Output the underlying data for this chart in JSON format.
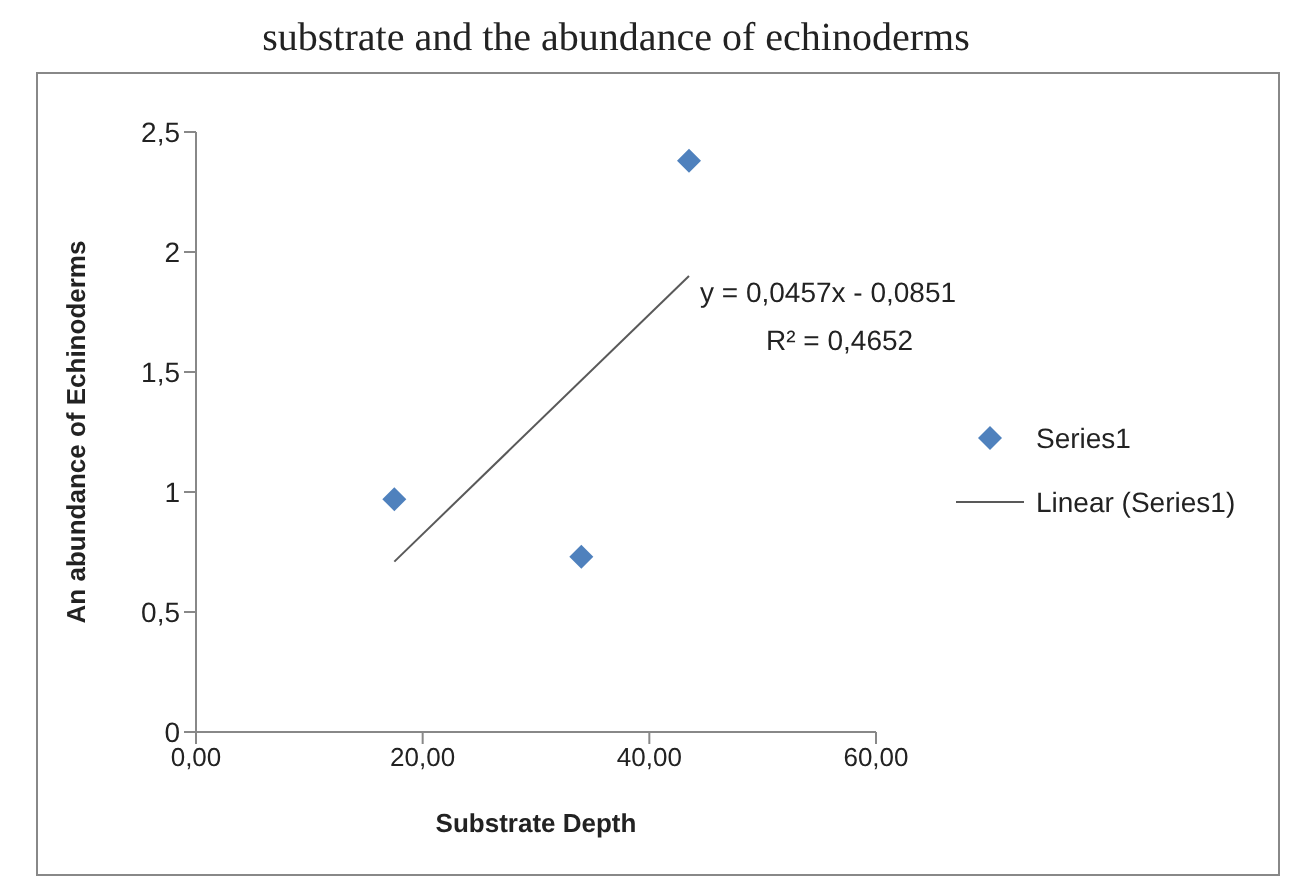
{
  "chart_data": {
    "type": "scatter",
    "title": "substrate and the abundance of echinoderms",
    "xlabel": "Substrate Depth",
    "ylabel": "An abundance of Echinoderms",
    "series": [
      {
        "name": "Series1",
        "color": "#4f81bd",
        "marker": "diamond",
        "x": [
          17.5,
          34,
          43.5
        ],
        "values": [
          0.97,
          0.73,
          2.38
        ]
      },
      {
        "name": "Linear (Series1)",
        "type": "line",
        "color": "#595959",
        "marker": "none",
        "line_style": "solid",
        "x": [
          17.5,
          43.5
        ],
        "values": [
          0.71,
          1.9
        ]
      }
    ],
    "annotations": [
      "y = 0,0457x - 0,0851",
      "R² = 0,4652"
    ],
    "xlim": [
      0,
      60
    ],
    "xticks": [
      {
        "value": 0,
        "label": "0,00"
      },
      {
        "value": 20,
        "label": "20,00"
      },
      {
        "value": 40,
        "label": "40,00"
      },
      {
        "value": 60,
        "label": "60,00"
      }
    ],
    "ylim": [
      0,
      2.5
    ],
    "yticks": [
      0,
      {
        "value": 0.5,
        "label": "0,5"
      },
      1,
      {
        "value": 1.5,
        "label": "1,5"
      },
      2,
      {
        "value": 2.5,
        "label": "2,5"
      }
    ],
    "grid": false,
    "legend": "right"
  }
}
